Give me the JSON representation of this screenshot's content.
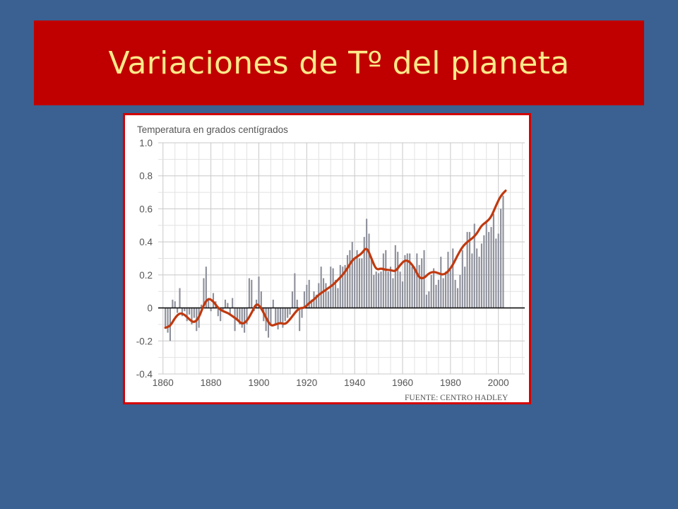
{
  "slide": {
    "title": "Variaciones de Tº del planeta"
  },
  "colors": {
    "background": "#3a6191",
    "banner": "#c00000",
    "title_text": "#fde98a",
    "bars": "#8d8f9a",
    "trend_line": "#c0390f",
    "frame_border": "#d40000"
  },
  "chart_data": {
    "type": "bar",
    "title": "Temperatura en grados centígrados",
    "source": "FUENTE: CENTRO HADLEY",
    "xlim": [
      1858,
      2011
    ],
    "ylim": [
      -0.4,
      1.0
    ],
    "x_ticks": [
      1860,
      1880,
      1900,
      1920,
      1940,
      1960,
      1980,
      2000
    ],
    "y_ticks": [
      1.0,
      0.8,
      0.6,
      0.4,
      0.2,
      0,
      -0.2,
      -0.4
    ],
    "y_tick_labels": [
      "1.0",
      "0.8",
      "0.6",
      "0.4",
      "0.2",
      "0",
      "-0.2",
      "-0.4"
    ],
    "grid": true,
    "series": [
      {
        "kind": "bar",
        "x": [
          1861,
          1862,
          1863,
          1864,
          1865,
          1866,
          1867,
          1868,
          1869,
          1870,
          1871,
          1872,
          1873,
          1874,
          1875,
          1876,
          1877,
          1878,
          1879,
          1880,
          1881,
          1882,
          1883,
          1884,
          1885,
          1886,
          1887,
          1888,
          1889,
          1890,
          1891,
          1892,
          1893,
          1894,
          1895,
          1896,
          1897,
          1898,
          1899,
          1900,
          1901,
          1902,
          1903,
          1904,
          1905,
          1906,
          1907,
          1908,
          1909,
          1910,
          1911,
          1912,
          1913,
          1914,
          1915,
          1916,
          1917,
          1918,
          1919,
          1920,
          1921,
          1922,
          1923,
          1924,
          1925,
          1926,
          1927,
          1928,
          1929,
          1930,
          1931,
          1932,
          1933,
          1934,
          1935,
          1936,
          1937,
          1938,
          1939,
          1940,
          1941,
          1942,
          1943,
          1944,
          1945,
          1946,
          1947,
          1948,
          1949,
          1950,
          1951,
          1952,
          1953,
          1954,
          1955,
          1956,
          1957,
          1958,
          1959,
          1960,
          1961,
          1962,
          1963,
          1964,
          1965,
          1966,
          1967,
          1968,
          1969,
          1970,
          1971,
          1972,
          1973,
          1974,
          1975,
          1976,
          1977,
          1978,
          1979,
          1980,
          1981,
          1982,
          1983,
          1984,
          1985,
          1986,
          1987,
          1988,
          1989,
          1990,
          1991,
          1992,
          1993,
          1994,
          1995,
          1996,
          1997,
          1998,
          1999,
          2000,
          2001,
          2002
        ],
        "values": [
          -0.12,
          -0.15,
          -0.2,
          0.05,
          0.04,
          -0.03,
          0.12,
          -0.05,
          -0.02,
          -0.08,
          -0.04,
          -0.1,
          -0.06,
          -0.14,
          -0.12,
          0.02,
          0.18,
          0.25,
          0.06,
          -0.02,
          0.09,
          0.04,
          -0.05,
          -0.08,
          -0.02,
          0.05,
          0.03,
          -0.04,
          0.06,
          -0.14,
          -0.08,
          -0.1,
          -0.12,
          -0.15,
          -0.1,
          0.18,
          0.17,
          -0.02,
          0.05,
          0.19,
          0.1,
          -0.08,
          -0.14,
          -0.18,
          -0.1,
          0.05,
          -0.1,
          -0.13,
          -0.09,
          -0.12,
          -0.08,
          -0.06,
          -0.04,
          0.1,
          0.21,
          0.05,
          -0.14,
          -0.06,
          0.1,
          0.14,
          0.17,
          0.05,
          0.1,
          0.08,
          0.15,
          0.25,
          0.18,
          0.15,
          0.1,
          0.25,
          0.24,
          0.17,
          0.12,
          0.26,
          0.25,
          0.26,
          0.32,
          0.35,
          0.4,
          0.3,
          0.35,
          0.3,
          0.3,
          0.43,
          0.54,
          0.45,
          0.3,
          0.2,
          0.22,
          0.21,
          0.22,
          0.33,
          0.35,
          0.22,
          0.25,
          0.18,
          0.38,
          0.34,
          0.22,
          0.16,
          0.32,
          0.33,
          0.33,
          0.25,
          0.25,
          0.33,
          0.26,
          0.3,
          0.35,
          0.08,
          0.1,
          0.2,
          0.24,
          0.14,
          0.17,
          0.31,
          0.18,
          0.22,
          0.34,
          0.23,
          0.36,
          0.17,
          0.12,
          0.2,
          0.35,
          0.25,
          0.46,
          0.46,
          0.33,
          0.51,
          0.36,
          0.31,
          0.39,
          0.44,
          0.53,
          0.46,
          0.49,
          0.57,
          0.42,
          0.45,
          0.6,
          0.68
        ]
      },
      {
        "kind": "line",
        "x": [
          1861,
          1863,
          1865,
          1867,
          1869,
          1871,
          1873,
          1875,
          1877,
          1879,
          1881,
          1883,
          1885,
          1887,
          1889,
          1891,
          1893,
          1895,
          1897,
          1899,
          1901,
          1903,
          1905,
          1907,
          1909,
          1911,
          1913,
          1915,
          1917,
          1919,
          1921,
          1923,
          1925,
          1927,
          1929,
          1931,
          1933,
          1935,
          1937,
          1939,
          1941,
          1943,
          1945,
          1947,
          1949,
          1951,
          1953,
          1955,
          1957,
          1959,
          1961,
          1963,
          1965,
          1967,
          1969,
          1971,
          1973,
          1975,
          1977,
          1979,
          1981,
          1983,
          1985,
          1987,
          1989,
          1991,
          1993,
          1995,
          1997,
          1999,
          2001,
          2003
        ],
        "values": [
          -0.12,
          -0.11,
          -0.06,
          -0.03,
          -0.04,
          -0.07,
          -0.09,
          -0.06,
          0.02,
          0.06,
          0.04,
          0.0,
          -0.02,
          -0.03,
          -0.05,
          -0.07,
          -0.1,
          -0.08,
          -0.03,
          0.03,
          0.0,
          -0.06,
          -0.11,
          -0.1,
          -0.09,
          -0.1,
          -0.07,
          -0.03,
          0.0,
          0.0,
          0.03,
          0.05,
          0.08,
          0.1,
          0.12,
          0.14,
          0.17,
          0.2,
          0.24,
          0.29,
          0.31,
          0.33,
          0.37,
          0.3,
          0.23,
          0.24,
          0.23,
          0.23,
          0.22,
          0.26,
          0.29,
          0.28,
          0.24,
          0.18,
          0.18,
          0.21,
          0.22,
          0.21,
          0.2,
          0.22,
          0.26,
          0.32,
          0.37,
          0.4,
          0.42,
          0.45,
          0.5,
          0.52,
          0.55,
          0.62,
          0.68,
          0.71
        ]
      }
    ]
  }
}
